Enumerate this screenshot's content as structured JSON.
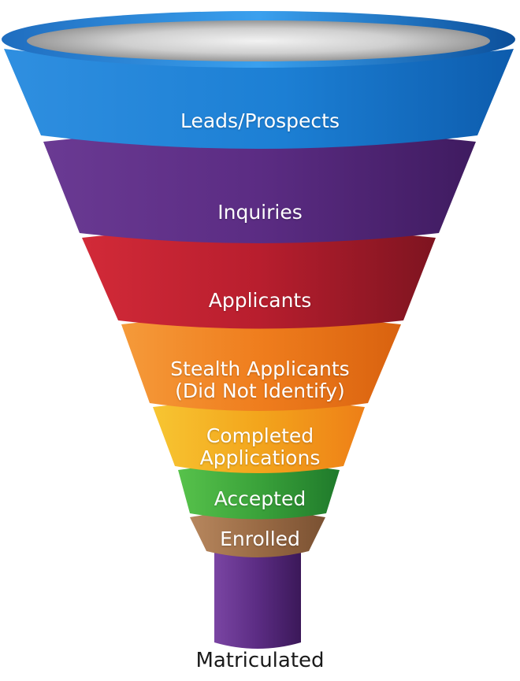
{
  "funnel": {
    "stages": [
      {
        "label": "Leads/Prospects",
        "color": "#1b82d6"
      },
      {
        "label": "Inquiries",
        "color": "#5b2c83"
      },
      {
        "label": "Applicants",
        "color": "#b81e2e"
      },
      {
        "label": "Stealth Applicants",
        "label2": "(Did Not Identify)",
        "color": "#ef7d1d"
      },
      {
        "label": "Completed",
        "label2": "Applications",
        "color": "#f3a51c"
      },
      {
        "label": "Accepted",
        "color": "#3aa23a"
      },
      {
        "label": "Enrolled",
        "color": "#9a6b45"
      }
    ],
    "spout_color": "#5b2c83",
    "caption": "Matriculated"
  }
}
